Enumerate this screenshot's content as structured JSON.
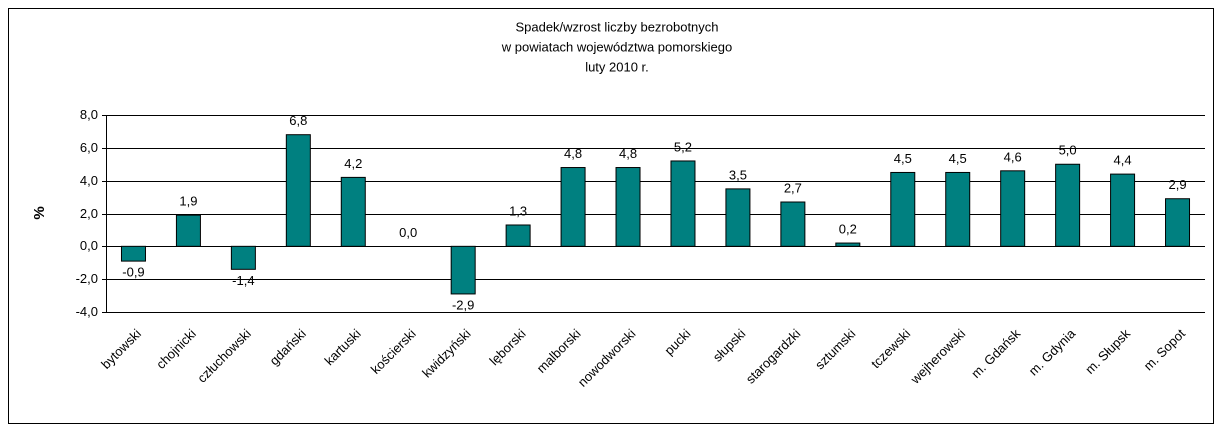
{
  "chart_data": {
    "type": "bar",
    "title": [
      "Spadek/wzrost liczby bezrobotnych",
      "w powiatach województwa pomorskiego",
      "luty 2010 r."
    ],
    "y_label": "%",
    "categories": [
      "bytowski",
      "chojnicki",
      "człuchowski",
      "gdański",
      "kartuski",
      "kościerski",
      "kwidzyński",
      "lęborski",
      "malborski",
      "nowodworski",
      "pucki",
      "słupski",
      "starogardzki",
      "sztumski",
      "tczewski",
      "wejherowski",
      "m. Gdańsk",
      "m. Gdynia",
      "m. Słupsk",
      "m. Sopot"
    ],
    "values": [
      -0.9,
      1.9,
      -1.4,
      6.8,
      4.2,
      0.0,
      -2.9,
      1.3,
      4.8,
      4.8,
      5.2,
      3.5,
      2.7,
      0.2,
      4.5,
      4.5,
      4.6,
      5.0,
      4.4,
      2.9
    ],
    "value_labels": [
      "-0,9",
      "1,9",
      "-1,4",
      "6,8",
      "4,2",
      "0,0",
      "-2,9",
      "1,3",
      "4,8",
      "4,8",
      "5,2",
      "3,5",
      "2,7",
      "0,2",
      "4,5",
      "4,5",
      "4,6",
      "5,0",
      "4,4",
      "2,9"
    ],
    "color": "#008080",
    "ylim": [
      -4,
      8
    ],
    "yticks": [
      {
        "value": -4,
        "label": "-4,0"
      },
      {
        "value": -2,
        "label": "-2,0"
      },
      {
        "value": 0,
        "label": "0,0"
      },
      {
        "value": 2,
        "label": "2,0"
      },
      {
        "value": 4,
        "label": "4,0"
      },
      {
        "value": 6,
        "label": "6,0"
      },
      {
        "value": 8,
        "label": "8,0"
      }
    ],
    "grid": true
  }
}
